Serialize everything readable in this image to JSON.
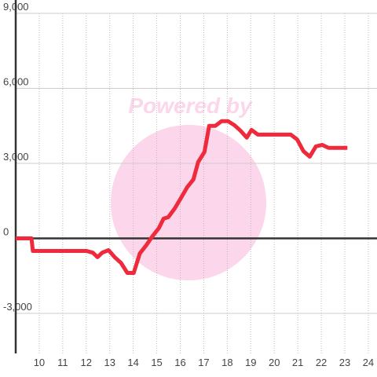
{
  "chart_data": {
    "type": "line",
    "watermark": "Powered by",
    "x": [
      9,
      9.67,
      9.73,
      12.0,
      12.28,
      12.48,
      12.68,
      12.95,
      13.21,
      13.48,
      13.75,
      14.02,
      14.28,
      14.55,
      14.82,
      15.09,
      15.29,
      15.49,
      15.76,
      16.02,
      16.29,
      16.56,
      16.76,
      17.03,
      17.23,
      17.49,
      17.76,
      18.03,
      18.3,
      18.56,
      18.83,
      19.03,
      19.3,
      20.7,
      20.97,
      21.24,
      21.51,
      21.77,
      22.04,
      22.31,
      23.11
    ],
    "series": [
      {
        "color": "#ee2a3c",
        "values": [
          0,
          0,
          -500,
          -500,
          -570,
          -750,
          -570,
          -470,
          -750,
          -980,
          -1380,
          -1380,
          -600,
          -280,
          90,
          410,
          790,
          850,
          1190,
          1600,
          2040,
          2360,
          3050,
          3460,
          4500,
          4500,
          4690,
          4690,
          4530,
          4310,
          4030,
          4340,
          4150,
          4150,
          3960,
          3490,
          3270,
          3680,
          3740,
          3620,
          3620
        ]
      }
    ],
    "xlim": [
      9,
      24.37
    ],
    "ylim": [
      -4600,
      9000
    ],
    "xticks": [
      10,
      11,
      12,
      13,
      14,
      15,
      16,
      17,
      18,
      19,
      20,
      21,
      22,
      23,
      24
    ],
    "yticks": [
      {
        "value": -3000,
        "label": "-3,000"
      },
      0,
      {
        "value": 3000,
        "label": "3,000"
      },
      {
        "value": 6000,
        "label": "6,000"
      },
      {
        "value": 9000,
        "label": "9,000"
      }
    ],
    "grid": true
  }
}
